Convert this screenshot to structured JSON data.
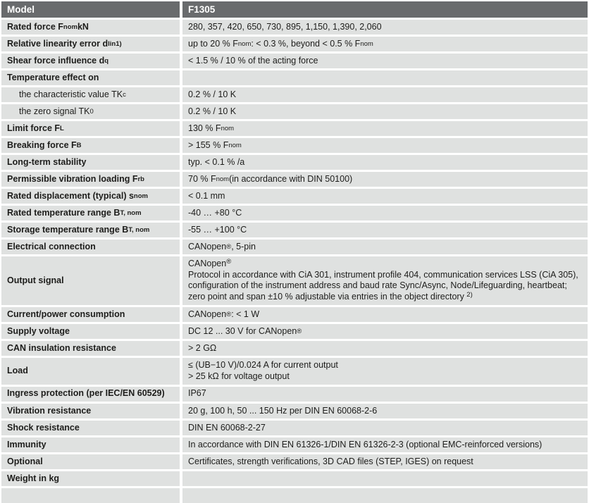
{
  "colors": {
    "header_bg": "#696b6d",
    "header_text": "#ffffff",
    "cell_bg": "#dfe1e0",
    "body_text": "#1d1d1b",
    "gap": "#ffffff"
  },
  "table": {
    "header": {
      "col1": "Model",
      "col2": "F1305"
    },
    "rows": [
      {
        "label": "Rated force F~nom~ kN",
        "value": "280, 357, 420, 650, 730, 895, 1,150, 1,390, 2,060"
      },
      {
        "label": "Relative linearity error d~lin~^1)^",
        "value": "up to 20 % F~nom~: < 0.3 %, beyond < 0.5 % F~nom~"
      },
      {
        "label": "Shear force influence d~q~",
        "value": "< 1.5 % / 10 % of the acting force"
      },
      {
        "label": "Temperature effect on",
        "value": ""
      },
      {
        "label": "the characteristic value TK~c~",
        "value": "0.2 % / 10 K",
        "indent": true
      },
      {
        "label": "the zero signal TK~0~",
        "value": "0.2 % / 10 K",
        "indent": true
      },
      {
        "label": "Limit force F~L~",
        "value": "130 % F~nom~"
      },
      {
        "label": "Breaking force F~B~",
        "value": "> 155 % F~nom~"
      },
      {
        "label": "Long-term stability",
        "value": "typ. < 0.1 % /a"
      },
      {
        "label": "Permissible vibration loading F~rb~",
        "value": "70 % F~nom~ (in accordance with DIN 50100)"
      },
      {
        "label": "Rated displacement (typical) s~nom~",
        "value": "< 0.1 mm"
      },
      {
        "label": "Rated temperature range B~T, nom~",
        "value": "-40 … +80 °C"
      },
      {
        "label": "Storage temperature range B~T, nom~",
        "value": "-55 … +100 °C"
      },
      {
        "label": "Electrical connection",
        "value": "CANopen^®^, 5-pin"
      },
      {
        "label": "Output signal",
        "value": "CANopen^®^\nProtocol in accordance with CiA 301, instrument profile 404, communication services LSS (CiA 305), configuration of the instrument address and baud rate Sync/Async, Node/Lifeguarding, heartbeat; zero point and span ±10 % adjustable via entries in the object directory ^2)^",
        "multiline": true
      },
      {
        "label": "Current/power consumption",
        "value": "CANopen^®^: < 1 W"
      },
      {
        "label": "Supply voltage",
        "value": "DC 12 ... 30 V for CANopen^®^"
      },
      {
        "label": "CAN insulation resistance",
        "value": "> 2 GΩ"
      },
      {
        "label": "Load",
        "value": "≤ (UB−10 V)/0.024 A for current output\n> 25 kΩ for voltage output",
        "multiline": true
      },
      {
        "label": "Ingress protection (per IEC/EN 60529)",
        "value": "IP67",
        "wrap": true
      },
      {
        "label": "Vibration resistance",
        "value": "20 g, 100 h, 50 ... 150 Hz per DIN EN 60068-2-6"
      },
      {
        "label": "Shock resistance",
        "value": "DIN EN 60068-2-27"
      },
      {
        "label": "Immunity",
        "value": "In accordance with DIN EN 61326-1/DIN EN 61326-2-3 (optional EMC-reinforced versions)"
      },
      {
        "label": "Optional",
        "value": "Certificates, strength verifications, 3D CAD files (STEP, IGES) on request"
      },
      {
        "label": "Weight in kg",
        "value": ""
      },
      {
        "label": "",
        "value": ""
      }
    ]
  }
}
